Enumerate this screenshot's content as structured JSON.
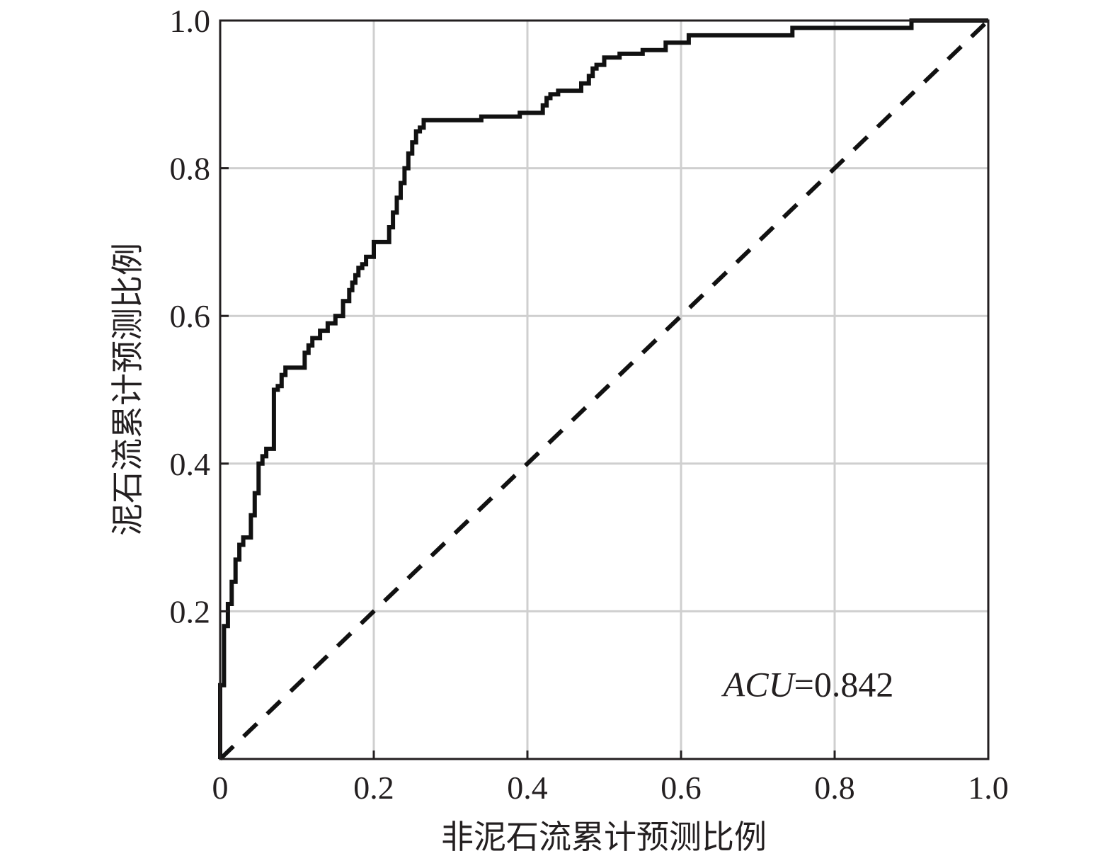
{
  "chart_data": {
    "type": "line",
    "title": "",
    "xlabel": "非泥石流累计预测比例",
    "ylabel": "泥石流累计预测比例",
    "xlim": [
      0,
      1
    ],
    "ylim": [
      0,
      1
    ],
    "grid": true,
    "x_ticks": [
      {
        "value": 0.0,
        "label": "0"
      },
      {
        "value": 0.2,
        "label": "0.2"
      },
      {
        "value": 0.4,
        "label": "0.4"
      },
      {
        "value": 0.6,
        "label": "0.6"
      },
      {
        "value": 0.8,
        "label": "0.8"
      },
      {
        "value": 1.0,
        "label": "1.0"
      }
    ],
    "y_ticks": [
      {
        "value": 0.2,
        "label": "0.2"
      },
      {
        "value": 0.4,
        "label": "0.4"
      },
      {
        "value": 0.6,
        "label": "0.6"
      },
      {
        "value": 0.8,
        "label": "0.8"
      },
      {
        "value": 1.0,
        "label": "1.0"
      }
    ],
    "annotation": {
      "italic": "ACU",
      "rest": "=0.842",
      "x": 0.655,
      "y": 0.085
    },
    "series": [
      {
        "style": "solid",
        "x": [
          0.0,
          0.0,
          0.005,
          0.005,
          0.01,
          0.01,
          0.015,
          0.015,
          0.02,
          0.02,
          0.025,
          0.025,
          0.03,
          0.03,
          0.04,
          0.04,
          0.045,
          0.045,
          0.05,
          0.05,
          0.055,
          0.055,
          0.06,
          0.06,
          0.07,
          0.07,
          0.075,
          0.075,
          0.08,
          0.08,
          0.085,
          0.085,
          0.11,
          0.11,
          0.115,
          0.115,
          0.12,
          0.12,
          0.13,
          0.13,
          0.14,
          0.14,
          0.15,
          0.15,
          0.16,
          0.16,
          0.168,
          0.168,
          0.172,
          0.172,
          0.176,
          0.176,
          0.18,
          0.18,
          0.185,
          0.185,
          0.19,
          0.19,
          0.2,
          0.2,
          0.22,
          0.22,
          0.225,
          0.225,
          0.23,
          0.23,
          0.235,
          0.235,
          0.24,
          0.24,
          0.245,
          0.245,
          0.25,
          0.25,
          0.255,
          0.255,
          0.26,
          0.26,
          0.265,
          0.265,
          0.34,
          0.34,
          0.39,
          0.39,
          0.42,
          0.42,
          0.425,
          0.425,
          0.43,
          0.43,
          0.44,
          0.44,
          0.47,
          0.47,
          0.48,
          0.48,
          0.485,
          0.485,
          0.49,
          0.49,
          0.5,
          0.5,
          0.52,
          0.52,
          0.55,
          0.55,
          0.58,
          0.58,
          0.61,
          0.61,
          0.745,
          0.745,
          0.9,
          0.9,
          1.0
        ],
        "y": [
          0.0,
          0.1,
          0.1,
          0.18,
          0.18,
          0.21,
          0.21,
          0.24,
          0.24,
          0.27,
          0.27,
          0.29,
          0.29,
          0.3,
          0.3,
          0.33,
          0.33,
          0.36,
          0.36,
          0.4,
          0.4,
          0.41,
          0.41,
          0.42,
          0.42,
          0.5,
          0.5,
          0.505,
          0.505,
          0.52,
          0.52,
          0.53,
          0.53,
          0.55,
          0.55,
          0.56,
          0.56,
          0.57,
          0.57,
          0.58,
          0.58,
          0.59,
          0.59,
          0.6,
          0.6,
          0.62,
          0.62,
          0.635,
          0.635,
          0.645,
          0.645,
          0.655,
          0.655,
          0.665,
          0.665,
          0.67,
          0.67,
          0.68,
          0.68,
          0.7,
          0.7,
          0.72,
          0.72,
          0.74,
          0.74,
          0.76,
          0.76,
          0.78,
          0.78,
          0.8,
          0.8,
          0.82,
          0.82,
          0.835,
          0.835,
          0.85,
          0.85,
          0.855,
          0.855,
          0.865,
          0.865,
          0.87,
          0.87,
          0.875,
          0.875,
          0.885,
          0.885,
          0.895,
          0.895,
          0.9,
          0.9,
          0.905,
          0.905,
          0.915,
          0.915,
          0.925,
          0.925,
          0.935,
          0.935,
          0.94,
          0.94,
          0.95,
          0.95,
          0.955,
          0.955,
          0.96,
          0.96,
          0.97,
          0.97,
          0.98,
          0.98,
          0.99,
          0.99,
          1.0,
          1.0
        ]
      },
      {
        "style": "dashed",
        "x": [
          0.0,
          1.0
        ],
        "y": [
          0.0,
          1.0
        ]
      }
    ]
  }
}
